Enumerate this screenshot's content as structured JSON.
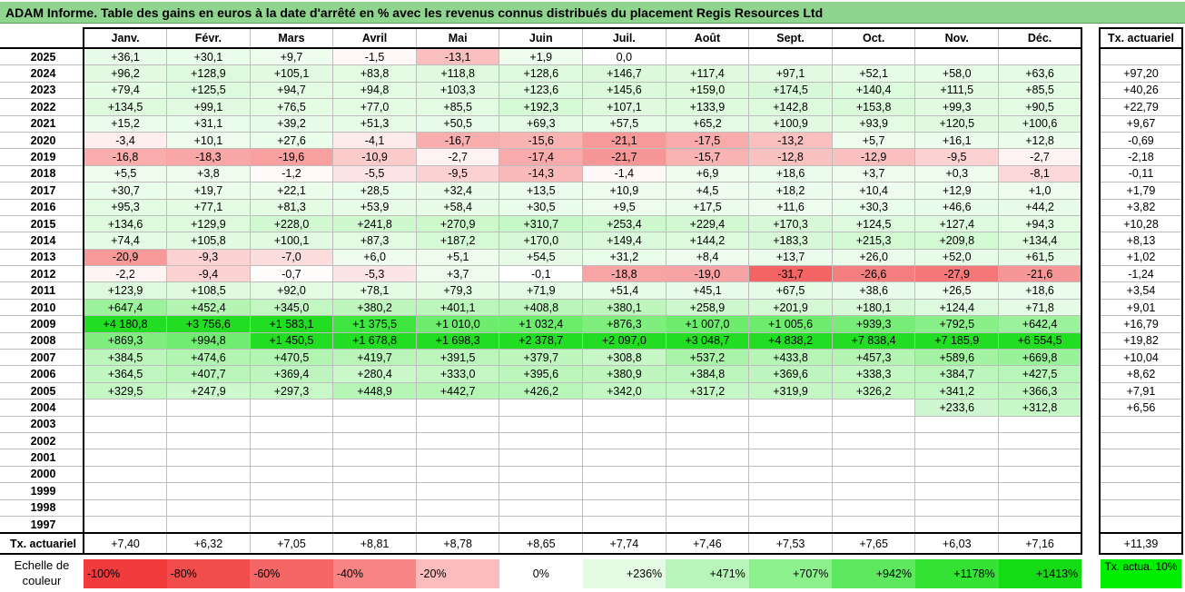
{
  "title": "ADAM Informe. Table des gains en euros à la date d'arrêté en % avec les revenus connus distribués du placement Regis Resources Ltd",
  "months": [
    "Janv.",
    "Févr.",
    "Mars",
    "Avril",
    "Mai",
    "Juin",
    "Juil.",
    "Août",
    "Sept.",
    "Oct.",
    "Nov.",
    "Déc."
  ],
  "side_header": "Tx. actuariel",
  "rows": [
    {
      "year": "2025",
      "cells": [
        "+36,1",
        "+30,1",
        "+9,7",
        "-1,5",
        "-13,1",
        "+1,9",
        "0,0",
        "",
        "",
        "",
        "",
        ""
      ],
      "tx": ""
    },
    {
      "year": "2024",
      "cells": [
        "+96,2",
        "+128,9",
        "+105,1",
        "+83,8",
        "+118,8",
        "+128,6",
        "+146,7",
        "+117,4",
        "+97,1",
        "+52,1",
        "+58,0",
        "+63,6"
      ],
      "tx": "+97,20"
    },
    {
      "year": "2023",
      "cells": [
        "+79,4",
        "+125,5",
        "+94,7",
        "+94,8",
        "+103,3",
        "+123,6",
        "+145,6",
        "+159,0",
        "+174,5",
        "+140,4",
        "+111,5",
        "+85,5"
      ],
      "tx": "+40,26"
    },
    {
      "year": "2022",
      "cells": [
        "+134,5",
        "+99,1",
        "+76,5",
        "+77,0",
        "+85,5",
        "+192,3",
        "+107,1",
        "+133,9",
        "+142,8",
        "+153,8",
        "+99,3",
        "+90,5"
      ],
      "tx": "+22,79"
    },
    {
      "year": "2021",
      "cells": [
        "+15,2",
        "+31,1",
        "+39,2",
        "+51,3",
        "+50,5",
        "+69,3",
        "+57,5",
        "+65,2",
        "+100,9",
        "+93,9",
        "+120,5",
        "+100,6"
      ],
      "tx": "+9,67"
    },
    {
      "year": "2020",
      "cells": [
        "-3,4",
        "+10,1",
        "+27,6",
        "-4,1",
        "-16,7",
        "-15,6",
        "-21,1",
        "-17,5",
        "-13,2",
        "+5,7",
        "+16,1",
        "+12,8"
      ],
      "tx": "-0,69"
    },
    {
      "year": "2019",
      "cells": [
        "-16,8",
        "-18,3",
        "-19,6",
        "-10,9",
        "-2,7",
        "-17,4",
        "-21,7",
        "-15,7",
        "-12,8",
        "-12,9",
        "-9,5",
        "-2,7"
      ],
      "tx": "-2,18"
    },
    {
      "year": "2018",
      "cells": [
        "+5,5",
        "+3,8",
        "-1,2",
        "-5,5",
        "-9,5",
        "-14,3",
        "-1,4",
        "+6,9",
        "+18,6",
        "+3,7",
        "+0,3",
        "-8,1"
      ],
      "tx": "-0,11"
    },
    {
      "year": "2017",
      "cells": [
        "+30,7",
        "+19,7",
        "+22,1",
        "+28,5",
        "+32,4",
        "+13,5",
        "+10,9",
        "+4,5",
        "+18,2",
        "+10,4",
        "+12,9",
        "+1,0"
      ],
      "tx": "+1,79"
    },
    {
      "year": "2016",
      "cells": [
        "+95,3",
        "+77,1",
        "+81,3",
        "+53,9",
        "+58,4",
        "+30,5",
        "+9,5",
        "+17,5",
        "+11,6",
        "+30,3",
        "+46,6",
        "+44,2"
      ],
      "tx": "+3,82"
    },
    {
      "year": "2015",
      "cells": [
        "+134,6",
        "+129,9",
        "+228,0",
        "+241,8",
        "+270,9",
        "+310,7",
        "+253,4",
        "+229,4",
        "+170,3",
        "+124,5",
        "+127,4",
        "+94,3"
      ],
      "tx": "+10,28"
    },
    {
      "year": "2014",
      "cells": [
        "+74,4",
        "+105,8",
        "+100,1",
        "+87,3",
        "+187,2",
        "+170,0",
        "+149,4",
        "+144,2",
        "+183,3",
        "+215,3",
        "+209,8",
        "+134,4"
      ],
      "tx": "+8,13"
    },
    {
      "year": "2013",
      "cells": [
        "-20,9",
        "-9,3",
        "-7,0",
        "+6,0",
        "+5,1",
        "+54,5",
        "+31,2",
        "+8,4",
        "+13,7",
        "+26,0",
        "+52,0",
        "+61,5"
      ],
      "tx": "+1,02"
    },
    {
      "year": "2012",
      "cells": [
        "-2,2",
        "-9,4",
        "-0,7",
        "-5,3",
        "+3,7",
        "-0,1",
        "-18,8",
        "-19,0",
        "-31,7",
        "-26,6",
        "-27,9",
        "-21,6"
      ],
      "tx": "-1,24"
    },
    {
      "year": "2011",
      "cells": [
        "+123,9",
        "+108,5",
        "+92,0",
        "+78,1",
        "+79,3",
        "+71,9",
        "+51,4",
        "+45,1",
        "+67,5",
        "+38,6",
        "+26,5",
        "+18,6"
      ],
      "tx": "+3,54"
    },
    {
      "year": "2010",
      "cells": [
        "+647,4",
        "+452,4",
        "+345,0",
        "+380,2",
        "+401,1",
        "+408,8",
        "+380,1",
        "+258,9",
        "+201,9",
        "+180,1",
        "+124,4",
        "+71,8"
      ],
      "tx": "+9,01"
    },
    {
      "year": "2009",
      "cells": [
        "+4 180,8",
        "+3 756,6",
        "+1 583,1",
        "+1 375,5",
        "+1 010,0",
        "+1 032,4",
        "+876,3",
        "+1 007,0",
        "+1 005,6",
        "+939,3",
        "+792,5",
        "+642,4"
      ],
      "tx": "+16,79"
    },
    {
      "year": "2008",
      "cells": [
        "+869,3",
        "+994,8",
        "+1 450,5",
        "+1 678,8",
        "+1 698,3",
        "+2 378,7",
        "+2 097,0",
        "+3 048,7",
        "+4 838,2",
        "+7 838,4",
        "+7 185,9",
        "+6 554,5"
      ],
      "tx": "+19,82"
    },
    {
      "year": "2007",
      "cells": [
        "+384,5",
        "+474,6",
        "+470,5",
        "+419,7",
        "+391,5",
        "+379,7",
        "+308,8",
        "+537,2",
        "+433,8",
        "+457,3",
        "+589,6",
        "+669,8"
      ],
      "tx": "+10,04"
    },
    {
      "year": "2006",
      "cells": [
        "+364,5",
        "+407,7",
        "+369,4",
        "+280,4",
        "+333,0",
        "+395,6",
        "+380,9",
        "+384,8",
        "+369,6",
        "+338,3",
        "+384,7",
        "+427,5"
      ],
      "tx": "+8,62"
    },
    {
      "year": "2005",
      "cells": [
        "+329,5",
        "+247,9",
        "+297,3",
        "+448,9",
        "+442,7",
        "+426,2",
        "+342,0",
        "+317,2",
        "+319,9",
        "+326,2",
        "+341,2",
        "+366,3"
      ],
      "tx": "+7,91"
    },
    {
      "year": "2004",
      "cells": [
        "",
        "",
        "",
        "",
        "",
        "",
        "",
        "",
        "",
        "",
        "+233,6",
        "+312,8"
      ],
      "tx": "+6,56"
    },
    {
      "year": "2003",
      "cells": [
        "",
        "",
        "",
        "",
        "",
        "",
        "",
        "",
        "",
        "",
        "",
        ""
      ],
      "tx": ""
    },
    {
      "year": "2002",
      "cells": [
        "",
        "",
        "",
        "",
        "",
        "",
        "",
        "",
        "",
        "",
        "",
        ""
      ],
      "tx": ""
    },
    {
      "year": "2001",
      "cells": [
        "",
        "",
        "",
        "",
        "",
        "",
        "",
        "",
        "",
        "",
        "",
        ""
      ],
      "tx": ""
    },
    {
      "year": "2000",
      "cells": [
        "",
        "",
        "",
        "",
        "",
        "",
        "",
        "",
        "",
        "",
        "",
        ""
      ],
      "tx": ""
    },
    {
      "year": "1999",
      "cells": [
        "",
        "",
        "",
        "",
        "",
        "",
        "",
        "",
        "",
        "",
        "",
        ""
      ],
      "tx": ""
    },
    {
      "year": "1998",
      "cells": [
        "",
        "",
        "",
        "",
        "",
        "",
        "",
        "",
        "",
        "",
        "",
        ""
      ],
      "tx": ""
    },
    {
      "year": "1997",
      "cells": [
        "",
        "",
        "",
        "",
        "",
        "",
        "",
        "",
        "",
        "",
        "",
        ""
      ],
      "tx": ""
    }
  ],
  "footer": {
    "label": "Tx. actuariel",
    "cells": [
      "+7,40",
      "+6,32",
      "+7,05",
      "+8,81",
      "+8,78",
      "+8,65",
      "+7,74",
      "+7,46",
      "+7,53",
      "+7,65",
      "+6,03",
      "+7,16"
    ],
    "tx": "+11,39"
  },
  "scale": {
    "label": "Echelle de couleur",
    "items": [
      {
        "text": "-100%",
        "color": "#f03c3c",
        "align": "left"
      },
      {
        "text": "-80%",
        "color": "#f34c4c",
        "align": "left"
      },
      {
        "text": "-60%",
        "color": "#f56666",
        "align": "left"
      },
      {
        "text": "-40%",
        "color": "#f78585",
        "align": "left"
      },
      {
        "text": "-20%",
        "color": "#fabcbc",
        "align": "left"
      },
      {
        "text": "0%",
        "color": "#ffffff",
        "align": "mid"
      },
      {
        "text": "+236%",
        "color": "#e4fbe4",
        "align": "right"
      },
      {
        "text": "+471%",
        "color": "#b8f5b8",
        "align": "right"
      },
      {
        "text": "+707%",
        "color": "#8cf08c",
        "align": "right"
      },
      {
        "text": "+942%",
        "color": "#5ee85e",
        "align": "right"
      },
      {
        "text": "+1178%",
        "color": "#33e233",
        "align": "right"
      },
      {
        "text": "+1413%",
        "color": "#14dc14",
        "align": "right"
      }
    ],
    "tx_label": "Tx. actua. 10%",
    "tx_color": "#00ee00"
  }
}
